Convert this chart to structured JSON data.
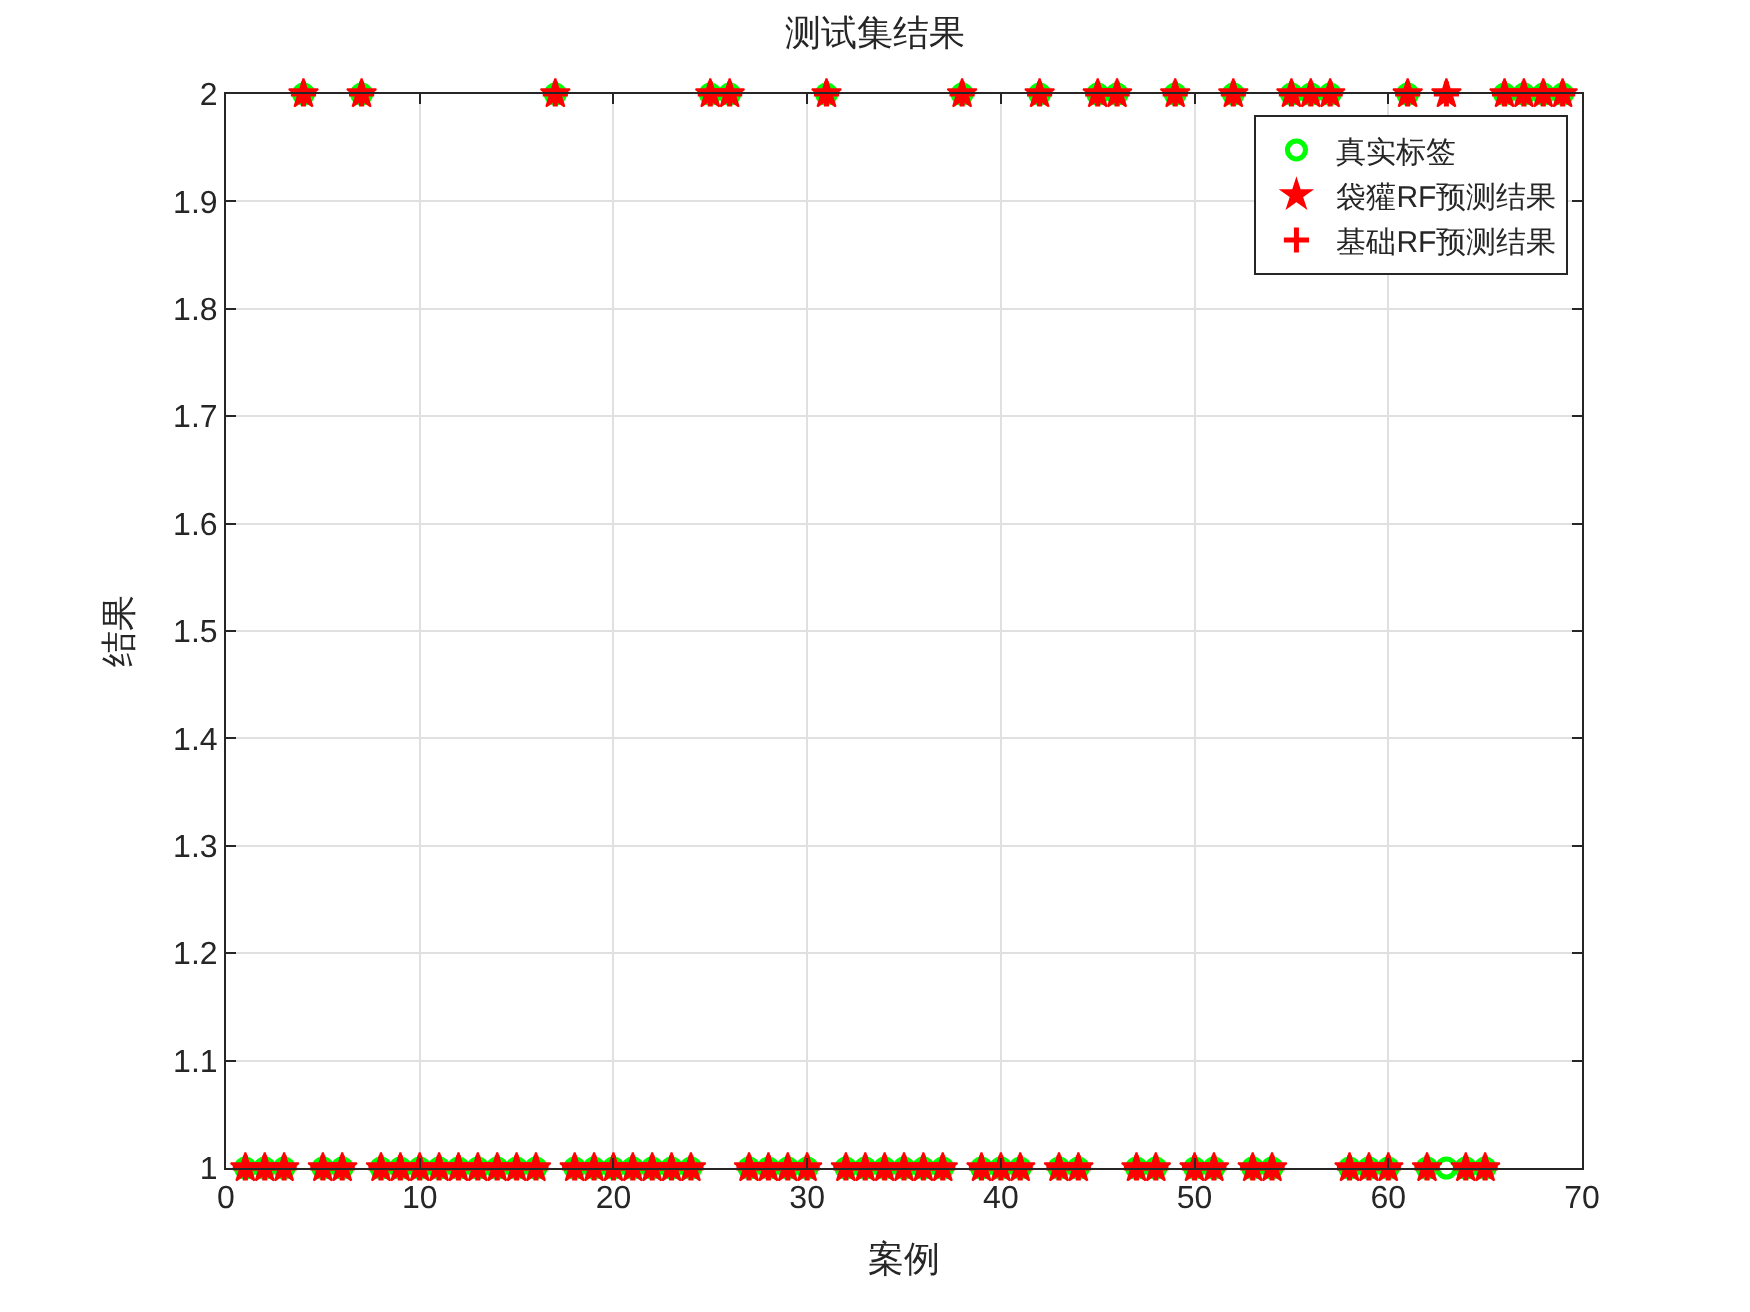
{
  "chart_data": {
    "type": "scatter",
    "title": "测试集结果",
    "xlabel": "案例",
    "ylabel": "结果",
    "x": [
      1,
      2,
      3,
      4,
      5,
      6,
      7,
      8,
      9,
      10,
      11,
      12,
      13,
      14,
      15,
      16,
      17,
      18,
      19,
      20,
      21,
      22,
      23,
      24,
      25,
      26,
      27,
      28,
      29,
      30,
      31,
      32,
      33,
      34,
      35,
      36,
      37,
      38,
      39,
      40,
      41,
      42,
      43,
      44,
      45,
      46,
      47,
      48,
      49,
      50,
      51,
      52,
      53,
      54,
      55,
      56,
      57,
      58,
      59,
      60,
      61,
      62,
      63,
      64,
      65,
      66,
      67,
      68,
      69
    ],
    "series": [
      {
        "name": "真实标签",
        "color": "#00ff00",
        "marker": "circle",
        "values": [
          1,
          1,
          1,
          2,
          1,
          1,
          2,
          1,
          1,
          1,
          1,
          1,
          1,
          1,
          1,
          1,
          2,
          1,
          1,
          1,
          1,
          1,
          1,
          1,
          2,
          2,
          1,
          1,
          1,
          1,
          2,
          1,
          1,
          1,
          1,
          1,
          1,
          2,
          1,
          1,
          1,
          2,
          1,
          1,
          2,
          2,
          1,
          1,
          2,
          1,
          1,
          2,
          1,
          1,
          2,
          2,
          2,
          1,
          1,
          1,
          2,
          1,
          1,
          1,
          1,
          2,
          2,
          2,
          2
        ]
      },
      {
        "name": "袋獾RF预测结果",
        "color": "#ff0000",
        "marker": "star",
        "values": [
          1,
          1,
          1,
          2,
          1,
          1,
          2,
          1,
          1,
          1,
          1,
          1,
          1,
          1,
          1,
          1,
          2,
          1,
          1,
          1,
          1,
          1,
          1,
          1,
          2,
          2,
          1,
          1,
          1,
          1,
          2,
          1,
          1,
          1,
          1,
          1,
          1,
          2,
          1,
          1,
          1,
          2,
          1,
          1,
          2,
          2,
          1,
          1,
          2,
          1,
          1,
          2,
          1,
          1,
          2,
          2,
          2,
          1,
          1,
          1,
          2,
          1,
          2,
          1,
          1,
          2,
          2,
          2,
          2
        ]
      },
      {
        "name": "基础RF预测结果",
        "color": "#ff0000",
        "marker": "cross",
        "values": [
          1,
          1,
          1,
          2,
          1,
          1,
          2,
          1,
          1,
          1,
          1,
          1,
          1,
          1,
          1,
          1,
          2,
          1,
          1,
          1,
          1,
          1,
          1,
          1,
          2,
          2,
          1,
          1,
          1,
          1,
          2,
          1,
          1,
          1,
          1,
          1,
          1,
          2,
          1,
          1,
          1,
          2,
          1,
          1,
          2,
          2,
          1,
          1,
          2,
          1,
          1,
          2,
          1,
          1,
          2,
          2,
          2,
          1,
          1,
          1,
          2,
          1,
          2,
          1,
          1,
          2,
          2,
          2,
          2
        ]
      }
    ],
    "xlim": [
      0,
      70
    ],
    "xticks": [
      0,
      10,
      20,
      30,
      40,
      50,
      60,
      70
    ],
    "ylim": [
      1,
      2
    ],
    "yticks": [
      1,
      1.1,
      1.2,
      1.3,
      1.4,
      1.5,
      1.6,
      1.7,
      1.8,
      1.9,
      2
    ],
    "grid": true,
    "legend": "top right"
  }
}
